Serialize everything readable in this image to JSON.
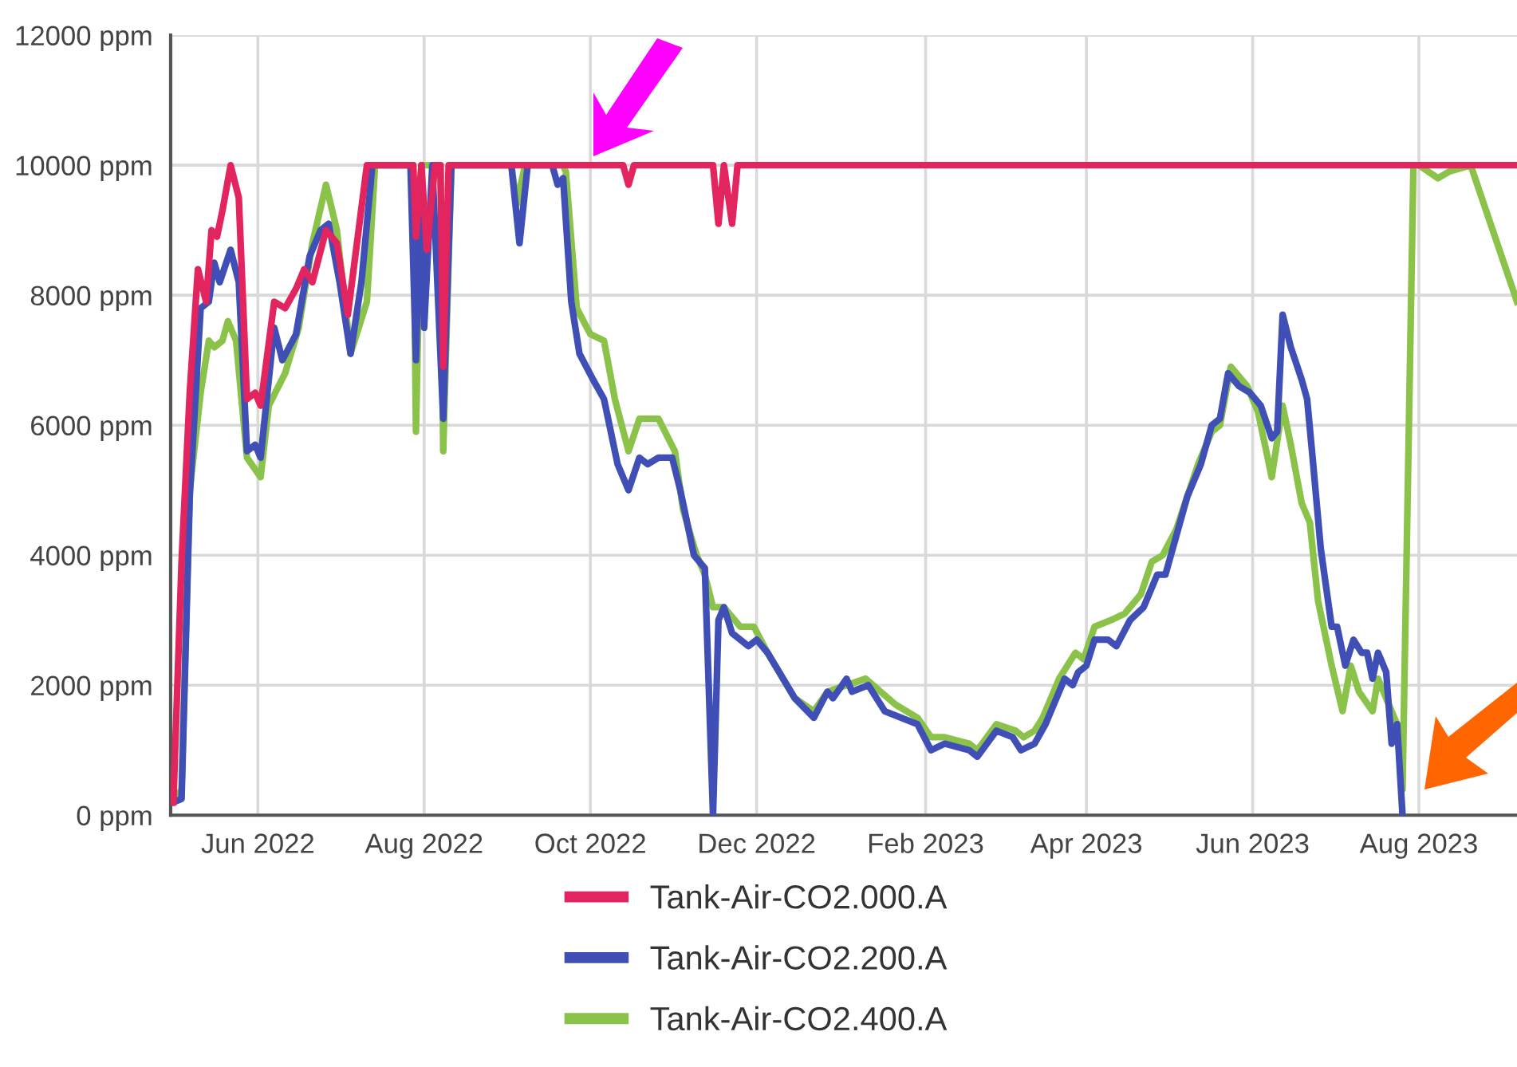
{
  "chart_data": {
    "type": "line",
    "xlim": [
      "2022-04-30",
      "2023-09-06"
    ],
    "ylim": [
      0,
      12000
    ],
    "yticks": [
      {
        "value": 0,
        "label": "0 ppm"
      },
      {
        "value": 2000,
        "label": "2000 ppm"
      },
      {
        "value": 4000,
        "label": "4000 ppm"
      },
      {
        "value": 6000,
        "label": "6000 ppm"
      },
      {
        "value": 8000,
        "label": "8000 ppm"
      },
      {
        "value": 10000,
        "label": "10000 ppm"
      },
      {
        "value": 12000,
        "label": "12000 ppm"
      }
    ],
    "xticks": [
      {
        "value": "2022-06-01",
        "label": "Jun 2022"
      },
      {
        "value": "2022-08-01",
        "label": "Aug 2022"
      },
      {
        "value": "2022-10-01",
        "label": "Oct 2022"
      },
      {
        "value": "2022-12-01",
        "label": "Dec 2022"
      },
      {
        "value": "2023-02-01",
        "label": "Feb 2023"
      },
      {
        "value": "2023-04-01",
        "label": "Apr 2023"
      },
      {
        "value": "2023-06-01",
        "label": "Jun 2023"
      },
      {
        "value": "2023-08-01",
        "label": "Aug 2023"
      }
    ],
    "grid": true,
    "legend": "bottom",
    "marker": "none",
    "line_style": "solid",
    "series": [
      {
        "name": "Tank-Air-CO2.000.A",
        "color": "#e2245f",
        "x": [
          "2022-05-01",
          "2022-05-04",
          "2022-05-07",
          "2022-05-10",
          "2022-05-13",
          "2022-05-15",
          "2022-05-17",
          "2022-05-19",
          "2022-05-22",
          "2022-05-25",
          "2022-05-28",
          "2022-05-31",
          "2022-06-02",
          "2022-06-07",
          "2022-06-11",
          "2022-06-15",
          "2022-06-18",
          "2022-06-21",
          "2022-06-26",
          "2022-06-30",
          "2022-07-04",
          "2022-07-11",
          "2022-07-28",
          "2022-07-29",
          "2022-07-31",
          "2022-08-02",
          "2022-08-05",
          "2022-08-07",
          "2022-08-08",
          "2022-08-10",
          "2022-10-13",
          "2022-10-15",
          "2022-10-17",
          "2022-11-15",
          "2022-11-17",
          "2022-11-19",
          "2022-11-22",
          "2022-11-24",
          "2023-09-06"
        ],
        "values": [
          200,
          3900,
          6500,
          8400,
          7900,
          9000,
          8900,
          9300,
          10000,
          9500,
          6400,
          6500,
          6300,
          7900,
          7800,
          8100,
          8400,
          8200,
          9000,
          8800,
          7700,
          10000,
          10000,
          8900,
          10000,
          8700,
          10000,
          10000,
          6900,
          10000,
          10000,
          9700,
          10000,
          10000,
          9100,
          10000,
          9100,
          10000,
          10000
        ]
      },
      {
        "name": "Tank-Air-CO2.200.A",
        "color": "#3f4fb5",
        "x": [
          "2022-05-01",
          "2022-05-04",
          "2022-05-07",
          "2022-05-11",
          "2022-05-14",
          "2022-05-16",
          "2022-05-18",
          "2022-05-22",
          "2022-05-25",
          "2022-05-28",
          "2022-05-31",
          "2022-06-02",
          "2022-06-07",
          "2022-06-10",
          "2022-06-15",
          "2022-06-20",
          "2022-06-24",
          "2022-06-27",
          "2022-07-01",
          "2022-07-05",
          "2022-07-09",
          "2022-07-13",
          "2022-07-27",
          "2022-07-29",
          "2022-07-31",
          "2022-08-01",
          "2022-08-04",
          "2022-08-08",
          "2022-08-11",
          "2022-09-02",
          "2022-09-05",
          "2022-09-08",
          "2022-09-17",
          "2022-09-19",
          "2022-09-21",
          "2022-09-24",
          "2022-09-27",
          "2022-10-02",
          "2022-10-06",
          "2022-10-11",
          "2022-10-15",
          "2022-10-19",
          "2022-10-22",
          "2022-10-26",
          "2022-10-31",
          "2022-11-03",
          "2022-11-08",
          "2022-11-12",
          "2022-11-15",
          "2022-11-17",
          "2022-11-19",
          "2022-11-22",
          "2022-11-28",
          "2022-12-01",
          "2022-12-05",
          "2022-12-15",
          "2022-12-22",
          "2022-12-27",
          "2022-12-29",
          "2023-01-03",
          "2023-01-05",
          "2023-01-11",
          "2023-01-17",
          "2023-01-29",
          "2023-02-03",
          "2023-02-08",
          "2023-02-17",
          "2023-02-20",
          "2023-02-27",
          "2023-03-05",
          "2023-03-08",
          "2023-03-13",
          "2023-03-17",
          "2023-03-24",
          "2023-03-27",
          "2023-03-29",
          "2023-04-01",
          "2023-04-04",
          "2023-04-09",
          "2023-04-12",
          "2023-04-17",
          "2023-04-22",
          "2023-04-27",
          "2023-04-30",
          "2023-05-04",
          "2023-05-08",
          "2023-05-13",
          "2023-05-17",
          "2023-05-20",
          "2023-05-23",
          "2023-05-27",
          "2023-05-31",
          "2023-06-04",
          "2023-06-08",
          "2023-06-10",
          "2023-06-12",
          "2023-06-15",
          "2023-06-19",
          "2023-06-21",
          "2023-06-23",
          "2023-06-26",
          "2023-06-30",
          "2023-07-02",
          "2023-07-05",
          "2023-07-08",
          "2023-07-11",
          "2023-07-13",
          "2023-07-15",
          "2023-07-17",
          "2023-07-20",
          "2023-07-22",
          "2023-07-24",
          "2023-07-26"
        ],
        "values": [
          200,
          250,
          4900,
          7800,
          7900,
          8500,
          8200,
          8700,
          8200,
          5600,
          5700,
          5500,
          7500,
          7000,
          7400,
          8600,
          9000,
          9100,
          8200,
          7100,
          8200,
          10000,
          10000,
          7000,
          10000,
          7500,
          10000,
          6100,
          10000,
          10000,
          8800,
          10000,
          10000,
          9700,
          9800,
          7900,
          7100,
          6700,
          6400,
          5400,
          5000,
          5500,
          5400,
          5500,
          5500,
          5000,
          4000,
          3800,
          0,
          3000,
          3200,
          2800,
          2600,
          2700,
          2500,
          1800,
          1500,
          1900,
          1800,
          2100,
          1900,
          2000,
          1600,
          1400,
          1000,
          1100,
          1000,
          900,
          1300,
          1200,
          1000,
          1100,
          1400,
          2100,
          2000,
          2200,
          2300,
          2700,
          2700,
          2600,
          3000,
          3200,
          3700,
          3700,
          4300,
          4900,
          5400,
          6000,
          6100,
          6800,
          6600,
          6500,
          6300,
          5800,
          5900,
          7700,
          7200,
          6700,
          6400,
          5500,
          4100,
          2900,
          2900,
          2300,
          2700,
          2500,
          2500,
          2100,
          2500,
          2200,
          1100,
          1400,
          0
        ]
      },
      {
        "name": "Tank-Air-CO2.400.A",
        "color": "#8bc34a",
        "x": [
          "2022-05-01",
          "2022-05-04",
          "2022-05-07",
          "2022-05-11",
          "2022-05-14",
          "2022-05-16",
          "2022-05-19",
          "2022-05-21",
          "2022-05-24",
          "2022-05-28",
          "2022-06-02",
          "2022-06-05",
          "2022-06-11",
          "2022-06-16",
          "2022-06-21",
          "2022-06-26",
          "2022-06-30",
          "2022-07-05",
          "2022-07-11",
          "2022-07-14",
          "2022-07-28",
          "2022-07-29",
          "2022-07-31",
          "2022-08-07",
          "2022-08-08",
          "2022-08-11",
          "2022-09-02",
          "2022-09-04",
          "2022-09-07",
          "2022-09-21",
          "2022-09-22",
          "2022-09-26",
          "2022-10-01",
          "2022-10-06",
          "2022-10-10",
          "2022-10-15",
          "2022-10-19",
          "2022-10-26",
          "2022-11-01",
          "2022-11-04",
          "2022-11-09",
          "2022-11-12",
          "2022-11-15",
          "2022-11-19",
          "2022-11-25",
          "2022-11-30",
          "2022-12-05",
          "2022-12-15",
          "2022-12-22",
          "2022-12-27",
          "2023-01-03",
          "2023-01-10",
          "2023-01-21",
          "2023-01-29",
          "2023-02-03",
          "2023-02-08",
          "2023-02-17",
          "2023-02-20",
          "2023-02-27",
          "2023-03-06",
          "2023-03-09",
          "2023-03-13",
          "2023-03-16",
          "2023-03-22",
          "2023-03-28",
          "2023-03-31",
          "2023-04-04",
          "2023-04-10",
          "2023-04-15",
          "2023-04-21",
          "2023-04-25",
          "2023-04-29",
          "2023-05-04",
          "2023-05-08",
          "2023-05-12",
          "2023-05-17",
          "2023-05-20",
          "2023-05-24",
          "2023-05-30",
          "2023-06-03",
          "2023-06-08",
          "2023-06-12",
          "2023-06-15",
          "2023-06-19",
          "2023-06-22",
          "2023-06-25",
          "2023-06-30",
          "2023-07-04",
          "2023-07-07",
          "2023-07-10",
          "2023-07-15",
          "2023-07-17",
          "2023-07-20",
          "2023-07-24",
          "2023-07-26",
          "2023-07-30",
          "2023-08-01",
          "2023-08-08",
          "2023-08-12",
          "2023-08-20",
          "2023-09-06"
        ],
        "values": [
          200,
          400,
          5000,
          6500,
          7300,
          7200,
          7300,
          7600,
          7300,
          5500,
          5200,
          6300,
          6800,
          7500,
          8800,
          9700,
          9000,
          7100,
          7900,
          10000,
          10000,
          5900,
          10000,
          10000,
          5600,
          10000,
          10000,
          9400,
          10000,
          10000,
          9900,
          7800,
          7400,
          7300,
          6400,
          5600,
          6100,
          6100,
          5600,
          4700,
          4000,
          3700,
          3200,
          3200,
          2900,
          2900,
          2500,
          1800,
          1600,
          1900,
          2000,
          2100,
          1700,
          1500,
          1200,
          1200,
          1100,
          1000,
          1400,
          1300,
          1200,
          1300,
          1500,
          2100,
          2500,
          2400,
          2900,
          3000,
          3100,
          3400,
          3900,
          4000,
          4400,
          4900,
          5400,
          5900,
          6000,
          6900,
          6600,
          6200,
          5200,
          6300,
          5700,
          4800,
          4500,
          3300,
          2300,
          1600,
          2300,
          1900,
          1600,
          2100,
          1800,
          1400,
          400,
          10000,
          10000,
          9800,
          9900,
          10000,
          7900
        ]
      }
    ]
  }
}
